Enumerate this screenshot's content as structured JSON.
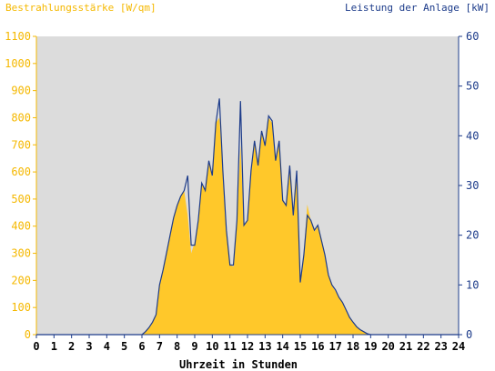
{
  "chart_data": {
    "type": "area",
    "title_left": "Bestrahlungsstärke [W/qm]",
    "title_right": "Leistung der Anlage [kW]",
    "xlabel": "Uhrzeit in Stunden",
    "x_ticks": [
      "0",
      "1",
      "2",
      "3",
      "4",
      "5",
      "6",
      "7",
      "8",
      "9",
      "10",
      "11",
      "12",
      "13",
      "14",
      "15",
      "16",
      "17",
      "18",
      "19",
      "20",
      "21",
      "22",
      "23",
      "24"
    ],
    "xlim": [
      0,
      24
    ],
    "y_left": {
      "ylim": [
        0,
        1100
      ],
      "ticks": [
        "0",
        "100",
        "200",
        "300",
        "400",
        "500",
        "600",
        "700",
        "800",
        "900",
        "1000",
        "1100"
      ],
      "color": "#f5b800"
    },
    "y_right": {
      "ylim": [
        0,
        60
      ],
      "ticks": [
        "0",
        "10",
        "20",
        "30",
        "40",
        "50",
        "60"
      ],
      "color": "#1c3b8a"
    },
    "plot_background": "#dcdcdc",
    "series": [
      {
        "name": "Bestrahlungsstärke [W/qm]",
        "axis": "left",
        "kind": "area",
        "color": "#ffc82a",
        "x": [
          0,
          6,
          6.2,
          6.4,
          6.6,
          6.8,
          7.0,
          7.2,
          7.4,
          7.6,
          7.8,
          8.0,
          8.2,
          8.4,
          8.6,
          8.8,
          9.0,
          9.2,
          9.4,
          9.6,
          9.8,
          10.0,
          10.2,
          10.4,
          10.6,
          10.8,
          11.0,
          11.2,
          11.4,
          11.6,
          11.8,
          12.0,
          12.2,
          12.4,
          12.6,
          12.8,
          13.0,
          13.2,
          13.4,
          13.6,
          13.8,
          14.0,
          14.2,
          14.4,
          14.6,
          14.8,
          15.0,
          15.2,
          15.4,
          15.6,
          15.8,
          16.0,
          16.2,
          16.4,
          16.6,
          16.8,
          17.0,
          17.2,
          17.4,
          17.6,
          17.8,
          18.0,
          18.2,
          18.4,
          18.6,
          18.8,
          19.0,
          24
        ],
        "y": [
          0,
          0,
          10,
          25,
          45,
          75,
          180,
          240,
          300,
          370,
          430,
          480,
          510,
          530,
          440,
          300,
          340,
          420,
          560,
          530,
          640,
          580,
          780,
          800,
          600,
          380,
          260,
          250,
          420,
          700,
          400,
          420,
          600,
          720,
          620,
          750,
          700,
          800,
          780,
          650,
          720,
          500,
          480,
          630,
          450,
          600,
          200,
          300,
          480,
          420,
          380,
          400,
          350,
          300,
          220,
          180,
          160,
          140,
          120,
          90,
          60,
          45,
          30,
          20,
          12,
          5,
          0,
          0
        ]
      },
      {
        "name": "Leistung der Anlage [kW]",
        "axis": "right",
        "kind": "line",
        "color": "#1c3b8a",
        "x": [
          0,
          6,
          6.2,
          6.4,
          6.6,
          6.8,
          7.0,
          7.2,
          7.4,
          7.6,
          7.8,
          8.0,
          8.2,
          8.4,
          8.6,
          8.8,
          9.0,
          9.2,
          9.4,
          9.6,
          9.8,
          10.0,
          10.2,
          10.4,
          10.6,
          10.8,
          11.0,
          11.2,
          11.4,
          11.6,
          11.8,
          12.0,
          12.2,
          12.4,
          12.6,
          12.8,
          13.0,
          13.2,
          13.4,
          13.6,
          13.8,
          14.0,
          14.2,
          14.4,
          14.6,
          14.8,
          15.0,
          15.2,
          15.4,
          15.6,
          15.8,
          16.0,
          16.2,
          16.4,
          16.6,
          16.8,
          17.0,
          17.2,
          17.4,
          17.6,
          17.8,
          18.0,
          18.2,
          18.4,
          18.6,
          18.8,
          19.0,
          24
        ],
        "y": [
          0,
          0,
          0.6,
          1.4,
          2.5,
          4,
          10,
          13,
          16.5,
          20,
          23.5,
          26,
          27.8,
          29,
          32,
          18,
          18,
          23,
          30.5,
          29,
          35,
          32,
          42.5,
          47.5,
          33,
          21,
          14,
          14,
          23,
          47,
          22,
          23,
          33,
          39,
          34,
          41,
          38,
          44,
          43,
          35,
          39,
          27,
          26,
          34,
          24,
          33,
          10.5,
          16,
          24,
          23,
          21,
          22,
          19,
          16,
          12,
          10,
          9,
          7.5,
          6.5,
          5,
          3.5,
          2.5,
          1.6,
          1,
          0.6,
          0.2,
          0,
          0
        ]
      }
    ]
  }
}
